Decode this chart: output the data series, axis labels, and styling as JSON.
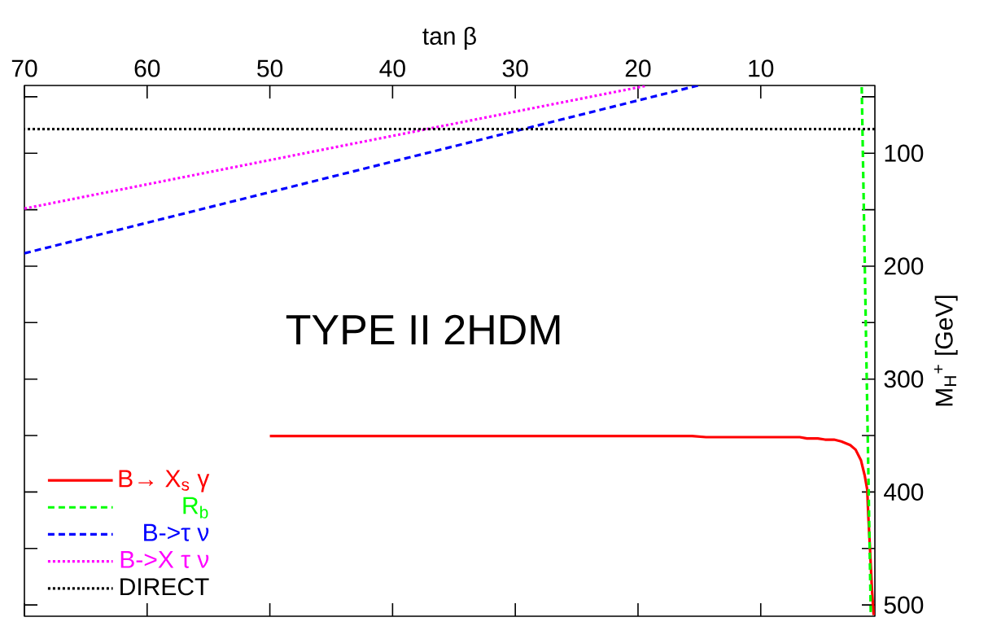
{
  "chart_data": {
    "type": "line",
    "xlabel": "tan β",
    "ylabel": "M$_{H}$$^{+}$ [GeV]",
    "annotations": [
      "TYPE II 2HDM"
    ],
    "xlim": [
      70,
      0.7
    ],
    "ylim": [
      510,
      40
    ],
    "xticks": [
      10,
      20,
      30,
      40,
      50,
      60,
      70
    ],
    "yticks": [
      {
        "value": 50,
        "label": null
      },
      100,
      {
        "value": 150,
        "label": null
      },
      200,
      {
        "value": 250,
        "label": null
      },
      300,
      {
        "value": 350,
        "label": null
      },
      400,
      {
        "value": 450,
        "label": null
      },
      500
    ],
    "legend": "bottom left",
    "grid": false,
    "marker": "none",
    "series": [
      {
        "name": "B→ X$_{s}$ γ",
        "color": "#ff0000",
        "line_style": "solid",
        "x": [
          50,
          15.6,
          14.46,
          6.82,
          6.23,
          5.35,
          4.76,
          4.03,
          3.44,
          2.71,
          2.27,
          1.83,
          1.53,
          1.32,
          1.24,
          1.09,
          0.95,
          0.8
        ],
        "values": [
          350.4,
          350.4,
          351.4,
          351.4,
          352.6,
          352.6,
          353.6,
          353.6,
          355.2,
          358.4,
          362.5,
          372,
          385.3,
          398,
          420,
          452,
          484,
          509
        ]
      },
      {
        "name": "R$_{b}$",
        "color": "#00ff00",
        "line_style": "dashed",
        "x": [
          1.77,
          1.03
        ],
        "values": [
          41.4,
          510
        ]
      },
      {
        "name": "B->τ ν",
        "color": "#0000ff",
        "line_style": "dashed",
        "x": [
          70,
          15.1
        ],
        "values": [
          188.6,
          40
        ]
      },
      {
        "name": "B->X τ ν",
        "color": "#ff00ff",
        "line_style": "dotted",
        "x": [
          70,
          19.3
        ],
        "values": [
          149,
          40.2
        ]
      },
      {
        "name": "DIRECT",
        "color": "#000000",
        "line_style": "dotted",
        "x": [
          0.7,
          70
        ],
        "values": [
          78.6,
          78.6
        ]
      }
    ]
  }
}
